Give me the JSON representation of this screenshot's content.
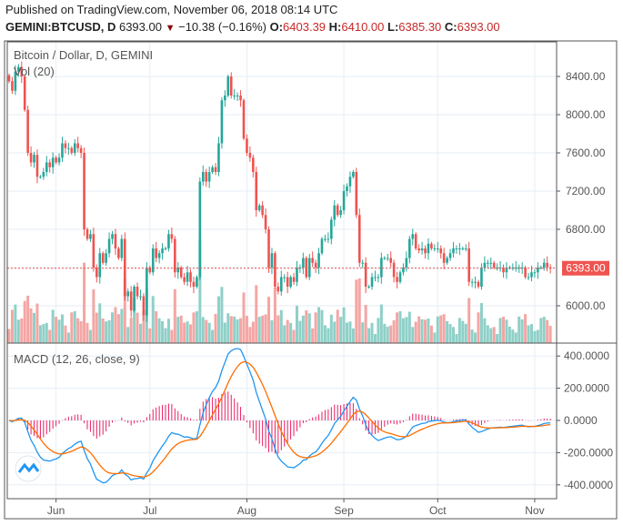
{
  "header": {
    "published": "Published on TradingView.com, November 06, 2018 08:14 UTC",
    "symbol": "GEMINI:BTCUSD, D",
    "last": "6393.00",
    "change": "−10.38 (−0.16%)",
    "o_label": "O:",
    "o": "6403.39",
    "h_label": "H:",
    "h": "6410.00",
    "l_label": "L:",
    "l": "6385.30",
    "c_label": "C:",
    "c": "6393.00",
    "down_icon": "triangle-down"
  },
  "chart_data": [
    {
      "type": "candlestick",
      "title": "Bitcoin / Dollar, D, GEMINI",
      "volume_label": "Vol (20)",
      "price_tag": "6393.00",
      "yticks": [
        "8400.00",
        "8000.00",
        "7600.00",
        "7200.00",
        "6800.00",
        "6000.00"
      ],
      "ylim": [
        5850,
        8650
      ],
      "xticks": [
        "Jun",
        "Jul",
        "Aug",
        "Sep",
        "Oct",
        "Nov"
      ],
      "colors": {
        "up": "#26a69a",
        "down": "#ef5350",
        "vol_up": "#8fd0c8",
        "vol_down": "#f4a6a4"
      },
      "closes_by_month": {
        "may": [
          8350,
          8250,
          8450,
          8500,
          8400,
          8050,
          7600,
          7500,
          7580,
          7350,
          7350,
          7400,
          7500,
          7450,
          7550
        ],
        "jun": [
          7500,
          7550,
          7700,
          7650,
          7650,
          7600,
          7700,
          7650,
          7600,
          6800,
          6700,
          6750,
          6400,
          6300,
          6550,
          6450,
          6550,
          6700,
          6750,
          6600,
          6500,
          6700,
          6100,
          6150,
          5950,
          6200,
          6100,
          6100,
          5900,
          6400
        ],
        "jul": [
          6350,
          6600,
          6500,
          6550,
          6600,
          6600,
          6750,
          6700,
          6350,
          6400,
          6300,
          6250,
          6350,
          6250,
          6200,
          6300,
          7300,
          7400,
          7300,
          7400,
          7450,
          7400,
          7700,
          8150,
          8200,
          8400,
          8200,
          8200,
          8200,
          8150,
          7750
        ],
        "aug": [
          7600,
          7550,
          7400,
          7000,
          7050,
          6950,
          6800,
          6400,
          6550,
          6200,
          6150,
          6300,
          6300,
          6200,
          6300,
          6250,
          6400,
          6400,
          6500,
          6300,
          6500,
          6450,
          6400,
          6550,
          6700,
          6700,
          6700,
          6900,
          7050,
          6950,
          7000
        ],
        "sep": [
          7200,
          7250,
          7350,
          7400,
          6950,
          6450,
          6450,
          6200,
          6200,
          6300,
          6300,
          6300,
          6500,
          6500,
          6500,
          6450,
          6300,
          6250,
          6350,
          6400,
          6500,
          6700,
          6750,
          6600,
          6580,
          6600,
          6550,
          6650,
          6600,
          6600
        ],
        "oct": [
          6600,
          6550,
          6450,
          6500,
          6550,
          6600,
          6600,
          6600,
          6600,
          6600,
          6250,
          6250,
          6250,
          6200,
          6400,
          6450,
          6450,
          6450,
          6400,
          6400,
          6400,
          6350,
          6400,
          6400,
          6400,
          6400,
          6400,
          6400,
          6300,
          6300,
          6350
        ],
        "nov": [
          6350,
          6400,
          6400,
          6450,
          6403.39,
          6393
        ]
      }
    },
    {
      "type": "line",
      "title": "MACD (12, 26, close, 9)",
      "yticks": [
        "400.0000",
        "200.0000",
        "0.0000",
        "-200.0000",
        "-400.0000"
      ],
      "ylim": [
        -480,
        480
      ],
      "colors": {
        "macd": "#2196f3",
        "signal": "#ff6d00",
        "hist": "#e91e63"
      }
    }
  ]
}
